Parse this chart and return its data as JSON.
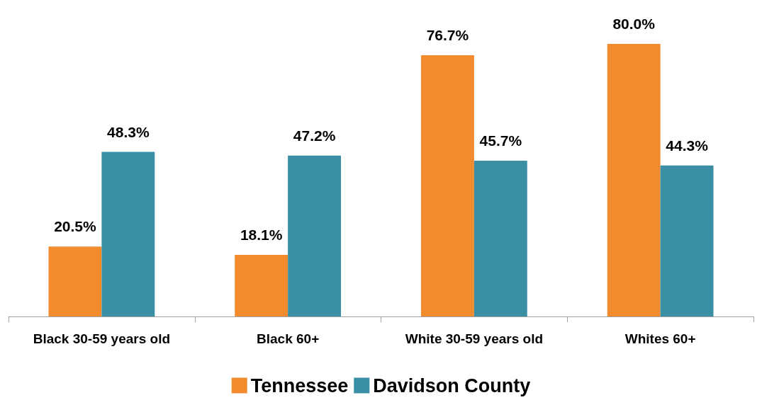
{
  "chart_data": {
    "type": "bar",
    "categories": [
      "Black 30-59 years old",
      "Black 60+",
      "White 30-59 years old",
      "Whites 60+"
    ],
    "series": [
      {
        "name": "Tennessee",
        "color": "#f28a2e",
        "values": [
          20.5,
          18.1,
          76.7,
          80.0
        ],
        "value_labels": [
          "20.5%",
          "18.1%",
          "76.7%",
          "80.0%"
        ]
      },
      {
        "name": "Davidson County",
        "color": "#3a8fa5",
        "values": [
          48.3,
          47.2,
          45.7,
          44.3
        ],
        "value_labels": [
          "48.3%",
          "47.2%",
          "45.7%",
          "44.3%"
        ]
      }
    ],
    "legend": "bottom",
    "grid": false
  }
}
